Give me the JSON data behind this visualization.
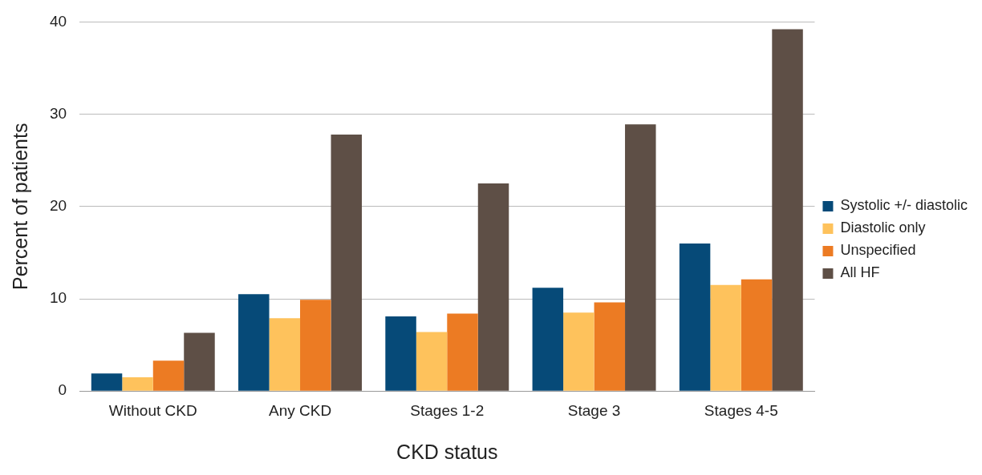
{
  "chart_data": {
    "type": "bar",
    "xlabel": "CKD status",
    "ylabel": "Percent of patients",
    "categories": [
      "Without CKD",
      "Any CKD",
      "Stages 1-2",
      "Stage 3",
      "Stages 4-5"
    ],
    "series": [
      {
        "name": "Systolic +/- diastolic",
        "color": "#064a78",
        "values": [
          1.9,
          10.5,
          8.1,
          11.2,
          16.0
        ]
      },
      {
        "name": "Diastolic only",
        "color": "#fec25c",
        "values": [
          1.5,
          7.9,
          6.4,
          8.5,
          11.5
        ]
      },
      {
        "name": "Unspecified",
        "color": "#ec7b23",
        "values": [
          3.3,
          9.9,
          8.4,
          9.6,
          12.1
        ]
      },
      {
        "name": "All HF",
        "color": "#5e4f46",
        "values": [
          6.3,
          27.8,
          22.5,
          28.9,
          39.2
        ]
      }
    ],
    "ylim": [
      0,
      40
    ],
    "yticks": [
      0,
      10,
      20,
      30,
      40
    ],
    "grid": "y",
    "legend": "right"
  }
}
